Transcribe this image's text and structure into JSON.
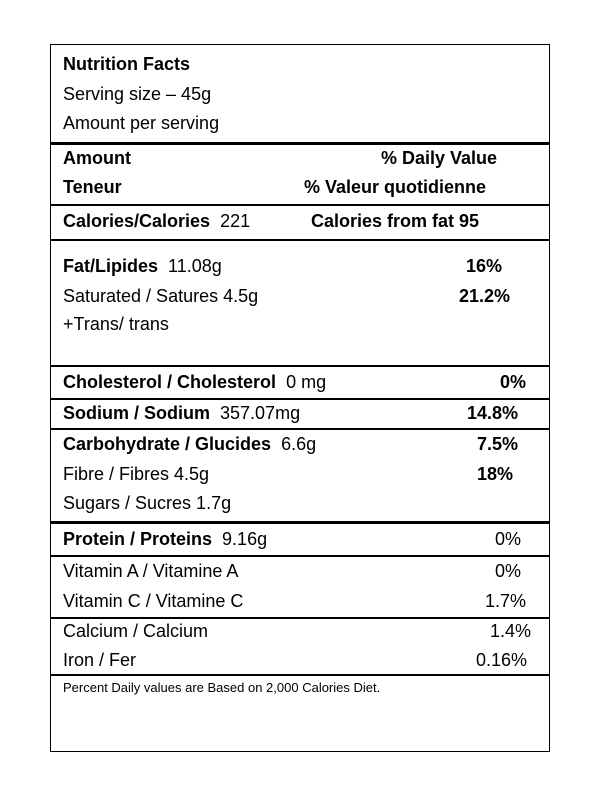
{
  "header": {
    "title": "Nutrition Facts",
    "serving_size": "Serving size – 45g",
    "amount_per_serving": "Amount per serving"
  },
  "column_heads": {
    "amount": "Amount",
    "teneur": "Teneur",
    "daily_value": "% Daily Value",
    "valeur_quotidienne": "% Valeur quotidienne"
  },
  "calories": {
    "label": "Calories/Calories",
    "value": "221",
    "from_fat": "Calories from fat 95"
  },
  "fat": {
    "label": "Fat/Lipides",
    "value": "11.08g",
    "dv": "16%",
    "saturated": "Saturated / Satures 4.5g",
    "saturated_dv": "21.2%",
    "trans": "+Trans/ trans"
  },
  "cholesterol": {
    "label": "Cholesterol / Cholesterol",
    "value": "0 mg",
    "dv": "0%"
  },
  "sodium": {
    "label": "Sodium / Sodium",
    "value": "357.07mg",
    "dv": "14.8%"
  },
  "carbohydrate": {
    "label": "Carbohydrate / Glucides",
    "value": "6.6g",
    "dv": "7.5%",
    "fibre": "Fibre / Fibres  4.5g",
    "fibre_dv": "18%",
    "sugars": "Sugars / Sucres 1.7g"
  },
  "protein": {
    "label": "Protein / Proteins",
    "value": "9.16g",
    "dv": "0%"
  },
  "vitamin_a": {
    "label": "Vitamin A /  Vitamine   A",
    "dv": "0%"
  },
  "vitamin_c": {
    "label": "Vitamin C /  Vitamine   C",
    "dv": "1.7%"
  },
  "calcium": {
    "label": "Calcium / Calcium",
    "dv": "1.4%"
  },
  "iron": {
    "label": "Iron / Fer",
    "dv": "0.16%"
  },
  "footnote": "Percent Daily values are Based on 2,000 Calories Diet."
}
